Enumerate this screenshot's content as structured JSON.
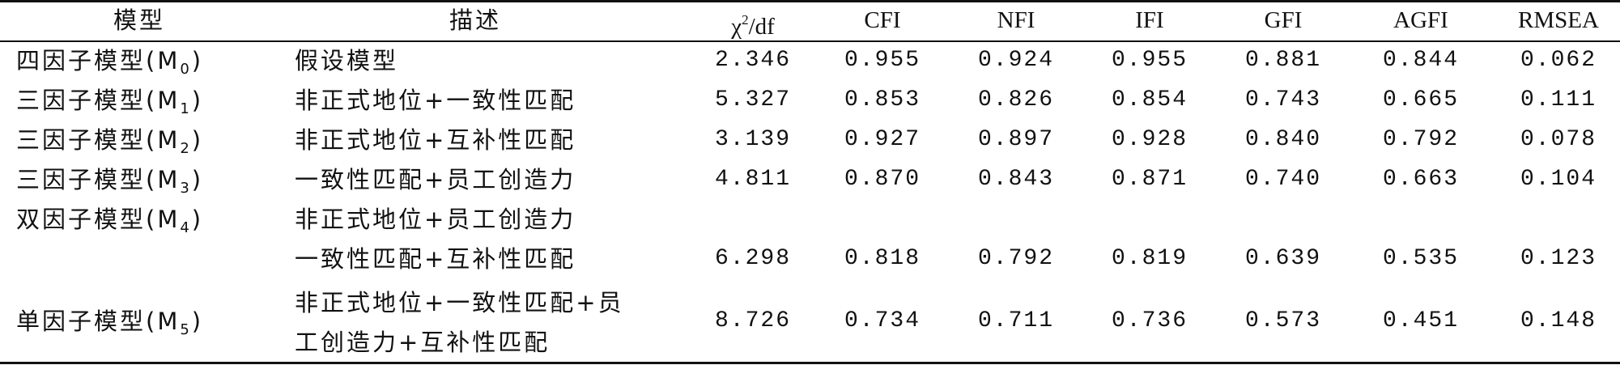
{
  "headers": {
    "model": "模型",
    "desc": "描述",
    "chi_base": "χ",
    "chi_sup": "2",
    "chi_tail": "/df",
    "cfi": "CFI",
    "nfi": "NFI",
    "ifi": "IFI",
    "gfi": "GFI",
    "agfi": "AGFI",
    "rmsea": "RMSEA"
  },
  "rows": [
    {
      "model_base": "四因子模型(M",
      "model_sub": "0",
      "model_tail": ")",
      "desc": "假设模型",
      "chi": "2.346",
      "cfi": "0.955",
      "nfi": "0.924",
      "ifi": "0.955",
      "gfi": "0.881",
      "agfi": "0.844",
      "rmsea": "0.062"
    },
    {
      "model_base": "三因子模型(M",
      "model_sub": "1",
      "model_tail": ")",
      "desc": "非正式地位+一致性匹配",
      "chi": "5.327",
      "cfi": "0.853",
      "nfi": "0.826",
      "ifi": "0.854",
      "gfi": "0.743",
      "agfi": "0.665",
      "rmsea": "0.111"
    },
    {
      "model_base": "三因子模型(M",
      "model_sub": "2",
      "model_tail": ")",
      "desc": "非正式地位+互补性匹配",
      "chi": "3.139",
      "cfi": "0.927",
      "nfi": "0.897",
      "ifi": "0.928",
      "gfi": "0.840",
      "agfi": "0.792",
      "rmsea": "0.078"
    },
    {
      "model_base": "三因子模型(M",
      "model_sub": "3",
      "model_tail": ")",
      "desc": "一致性匹配+员工创造力",
      "chi": "4.811",
      "cfi": "0.870",
      "nfi": "0.843",
      "ifi": "0.871",
      "gfi": "0.740",
      "agfi": "0.663",
      "rmsea": "0.104"
    },
    {
      "model_base": "双因子模型(M",
      "model_sub": "4",
      "model_tail": ")",
      "desc": "非正式地位+员工创造力",
      "desc2": "一致性匹配+互补性匹配",
      "chi": "6.298",
      "cfi": "0.818",
      "nfi": "0.792",
      "ifi": "0.819",
      "gfi": "0.639",
      "agfi": "0.535",
      "rmsea": "0.123"
    },
    {
      "model_base": "单因子模型(M",
      "model_sub": "5",
      "model_tail": ")",
      "desc": "非正式地位+一致性匹配+员",
      "desc2": "工创造力+互补性匹配",
      "chi": "8.726",
      "cfi": "0.734",
      "nfi": "0.711",
      "ifi": "0.736",
      "gfi": "0.573",
      "agfi": "0.451",
      "rmsea": "0.148"
    }
  ]
}
